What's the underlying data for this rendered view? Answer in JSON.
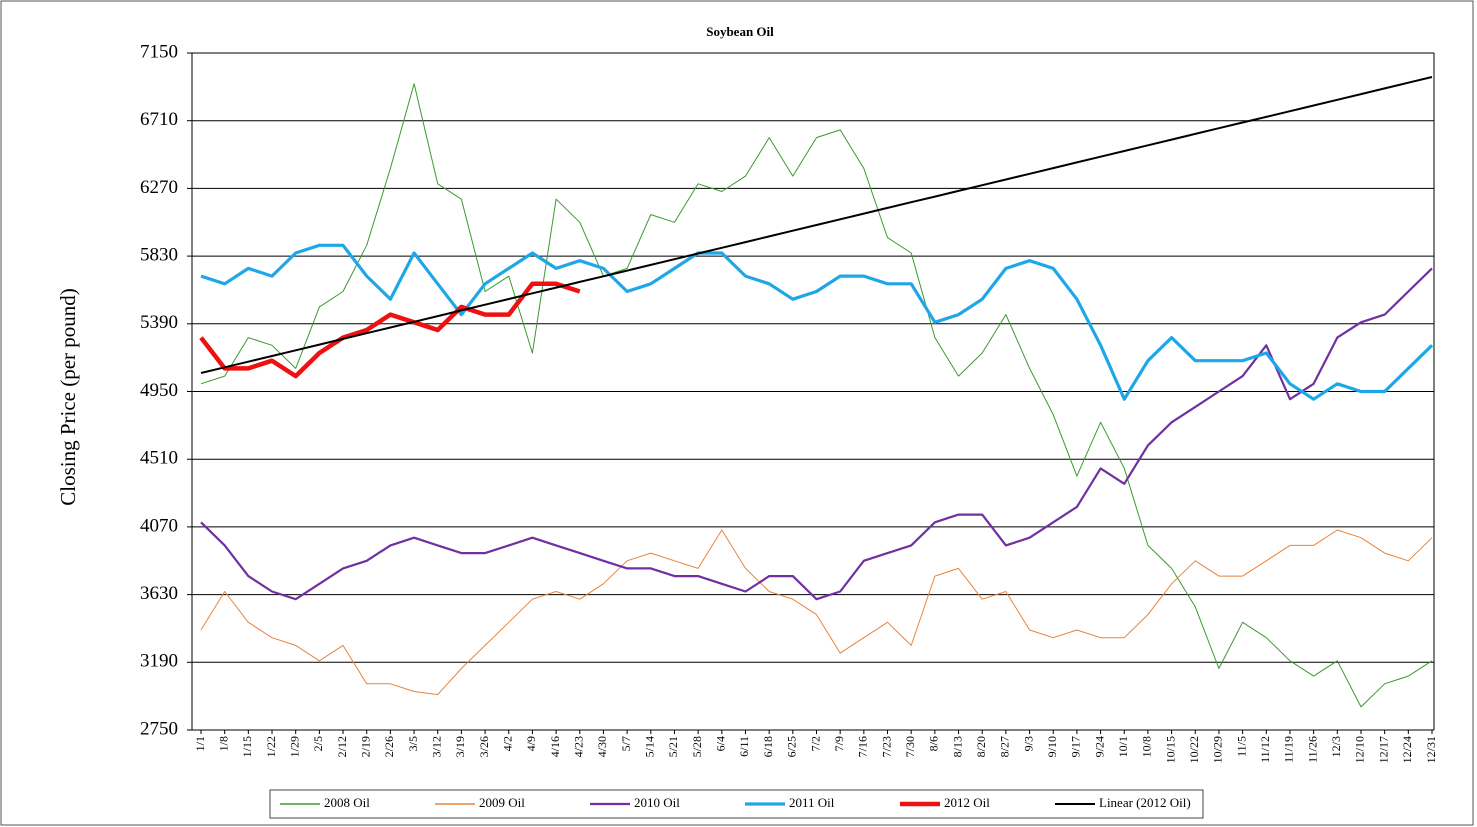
{
  "chart_data": {
    "type": "line",
    "title": "Soybean Oil",
    "y_label": "Closing Price (per pound)",
    "categories": [
      "1/1",
      "1/8",
      "1/15",
      "1/22",
      "1/29",
      "2/5",
      "2/12",
      "2/19",
      "2/26",
      "3/5",
      "3/12",
      "3/19",
      "3/26",
      "4/2",
      "4/9",
      "4/16",
      "4/23",
      "4/30",
      "5/7",
      "5/14",
      "5/21",
      "5/28",
      "6/4",
      "6/11",
      "6/18",
      "6/25",
      "7/2",
      "7/9",
      "7/16",
      "7/23",
      "7/30",
      "8/6",
      "8/13",
      "8/20",
      "8/27",
      "9/3",
      "9/10",
      "9/17",
      "9/24",
      "10/1",
      "10/8",
      "10/15",
      "10/22",
      "10/29",
      "11/5",
      "11/12",
      "11/19",
      "11/26",
      "12/3",
      "12/10",
      "12/17",
      "12/24",
      "12/31"
    ],
    "ylim": [
      2750,
      7150
    ],
    "yticks": [
      2750,
      3190,
      3630,
      4070,
      4510,
      4950,
      5390,
      5830,
      6270,
      6710,
      7150
    ],
    "grid": true,
    "legend": "bottom",
    "series": [
      {
        "name": "2008 Oil",
        "color": "#3a9a2e",
        "width": 1,
        "values": [
          5000,
          5050,
          5300,
          5250,
          5100,
          5500,
          5600,
          5900,
          6400,
          6950,
          6300,
          6200,
          5600,
          5700,
          5200,
          6200,
          6050,
          5700,
          5750,
          6100,
          6050,
          6300,
          6250,
          6350,
          6600,
          6350,
          6600,
          6650,
          6400,
          5950,
          5850,
          5300,
          5050,
          5200,
          5450,
          5100,
          4800,
          4400,
          4750,
          4450,
          3950,
          3800,
          3550,
          3150,
          3450,
          3350,
          3200,
          3100,
          3200,
          2900,
          3050,
          3100,
          3200
        ]
      },
      {
        "name": "2009 Oil",
        "color": "#e8843a",
        "width": 1,
        "values": [
          3400,
          3650,
          3450,
          3350,
          3300,
          3200,
          3300,
          3050,
          3050,
          3000,
          2980,
          3150,
          3300,
          3450,
          3600,
          3650,
          3600,
          3700,
          3850,
          3900,
          3850,
          3800,
          4050,
          3800,
          3650,
          3600,
          3500,
          3250,
          3350,
          3450,
          3300,
          3750,
          3800,
          3600,
          3650,
          3400,
          3350,
          3400,
          3350,
          3350,
          3500,
          3700,
          3850,
          3750,
          3750,
          3850,
          3950,
          3950,
          4050,
          4000,
          3900,
          3850,
          4000
        ]
      },
      {
        "name": "2010 Oil",
        "color": "#7030a0",
        "width": 2.2,
        "values": [
          4100,
          3950,
          3750,
          3650,
          3600,
          3700,
          3800,
          3850,
          3950,
          4000,
          3950,
          3900,
          3900,
          3950,
          4000,
          3950,
          3900,
          3850,
          3800,
          3800,
          3750,
          3750,
          3700,
          3650,
          3750,
          3750,
          3600,
          3650,
          3850,
          3900,
          3950,
          4100,
          4150,
          4150,
          3950,
          4000,
          4100,
          4200,
          4450,
          4350,
          4600,
          4750,
          4850,
          4950,
          5050,
          5250,
          4900,
          5000,
          5300,
          5400,
          5450,
          5600,
          5750
        ]
      },
      {
        "name": "2011 Oil",
        "color": "#1ea7e8",
        "width": 3.2,
        "values": [
          5700,
          5650,
          5750,
          5700,
          5850,
          5900,
          5900,
          5700,
          5550,
          5850,
          5650,
          5450,
          5650,
          5750,
          5850,
          5750,
          5800,
          5750,
          5600,
          5650,
          5750,
          5850,
          5850,
          5700,
          5650,
          5550,
          5600,
          5700,
          5700,
          5650,
          5650,
          5400,
          5450,
          5550,
          5750,
          5800,
          5750,
          5550,
          5250,
          4900,
          5150,
          5300,
          5150,
          5150,
          5150,
          5200,
          5000,
          4900,
          5000,
          4950,
          4950,
          5100,
          5250
        ]
      },
      {
        "name": "2012 Oil",
        "color": "#ee1111",
        "width": 4.5,
        "values": [
          5300,
          5100,
          5100,
          5150,
          5050,
          5200,
          5300,
          5350,
          5450,
          5400,
          5350,
          5500,
          5450,
          5450,
          5650,
          5650,
          5600,
          null,
          null,
          null,
          null,
          null,
          null,
          null,
          null,
          null,
          null,
          null,
          null,
          null,
          null,
          null,
          null,
          null,
          null,
          null,
          null,
          null,
          null,
          null,
          null,
          null,
          null,
          null,
          null,
          null,
          null,
          null,
          null,
          null,
          null,
          null,
          null
        ]
      },
      {
        "name": "Linear (2012 Oil)",
        "color": "#000000",
        "width": 2,
        "values": [
          5070,
          5107,
          5144,
          5181,
          5218,
          5255,
          5292,
          5329,
          5366,
          5403,
          5440,
          5477,
          5514,
          5551,
          5588,
          5625,
          5662,
          5699,
          5736,
          5773,
          5810,
          5847,
          5884,
          5921,
          5958,
          5995,
          6032,
          6069,
          6106,
          6143,
          6180,
          6217,
          6254,
          6291,
          6328,
          6365,
          6402,
          6439,
          6476,
          6513,
          6550,
          6587,
          6624,
          6661,
          6698,
          6735,
          6772,
          6809,
          6846,
          6883,
          6920,
          6957,
          6994
        ]
      }
    ]
  }
}
